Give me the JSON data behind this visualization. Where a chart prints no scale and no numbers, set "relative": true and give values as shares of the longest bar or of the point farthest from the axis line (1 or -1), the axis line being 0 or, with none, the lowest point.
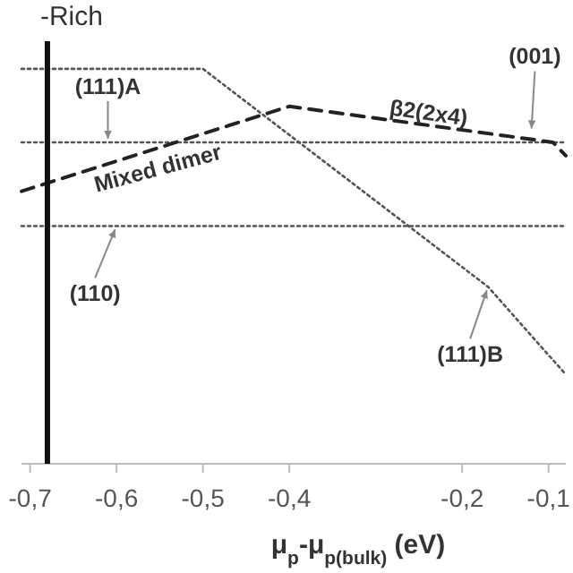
{
  "chart_data": {
    "type": "line",
    "relative": true,
    "xlabel": "μ$_{p}$-μ$_{p(bulk)}$ (eV)",
    "xlim": [
      -0.71,
      -0.08
    ],
    "xticks": [
      {
        "value": -0.7,
        "label": "-0,7"
      },
      {
        "value": -0.6,
        "label": "-0,6"
      },
      {
        "value": -0.5,
        "label": "-0,5"
      },
      {
        "value": -0.4,
        "label": "-0,4"
      },
      {
        "value": -0.2,
        "label": "-0,2"
      },
      {
        "value": -0.1,
        "label": "-0,1"
      }
    ],
    "series": [
      {
        "color": "#555555",
        "line_style": "dotted",
        "x": [
          -0.71,
          -0.5,
          -0.17,
          -0.08
        ],
        "values": [
          1.0,
          1.0,
          0.448,
          0.226
        ]
      },
      {
        "color": "#555555",
        "line_style": "dotted",
        "x": [
          -0.71,
          -0.08
        ],
        "values": [
          0.814,
          0.814
        ]
      },
      {
        "color": "#555555",
        "line_style": "dotted",
        "x": [
          -0.71,
          -0.08
        ],
        "values": [
          0.602,
          0.602
        ]
      },
      {
        "color": "#222222",
        "line_style": "dashed",
        "x": [
          -0.71,
          -0.4,
          -0.095,
          -0.08
        ],
        "values": [
          0.69,
          0.905,
          0.814,
          0.78
        ]
      }
    ],
    "ref_lines": [
      {
        "axis": "x",
        "value": -0.68,
        "label": "-Rich",
        "color": "#111111"
      }
    ],
    "annotations": [
      "(111)A",
      "β2(2x4)",
      "(001)",
      "Mixed dimer",
      "(110)",
      "(111)B"
    ]
  }
}
